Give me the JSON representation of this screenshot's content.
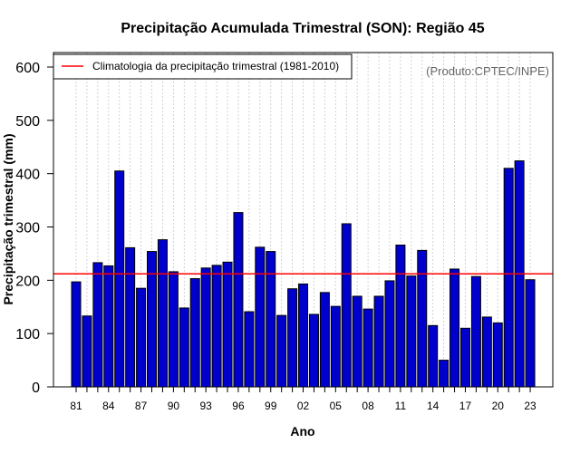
{
  "chart_data": {
    "type": "bar",
    "title": "Precipitação Acumulada Trimestral (SON): Região 45",
    "xlabel": "Ano",
    "ylabel": "Precipitação trimestral (mm)",
    "ylim": [
      0,
      600
    ],
    "yticks": [
      0,
      100,
      200,
      300,
      400,
      500,
      600
    ],
    "grid": true,
    "categories": [
      "1981",
      "1982",
      "1983",
      "1984",
      "1985",
      "1986",
      "1987",
      "1988",
      "1989",
      "1990",
      "1991",
      "1992",
      "1993",
      "1994",
      "1995",
      "1996",
      "1997",
      "1998",
      "1999",
      "2000",
      "2001",
      "2002",
      "2003",
      "2004",
      "2005",
      "2006",
      "2007",
      "2008",
      "2009",
      "2010",
      "2011",
      "2012",
      "2013",
      "2014",
      "2015",
      "2016",
      "2017",
      "2018",
      "2019",
      "2020",
      "2021",
      "2022",
      "2023"
    ],
    "xtick_labels": [
      "81",
      "84",
      "87",
      "90",
      "93",
      "96",
      "99",
      "02",
      "05",
      "08",
      "11",
      "14",
      "17",
      "20",
      "23"
    ],
    "values": [
      197,
      133,
      233,
      227,
      405,
      261,
      185,
      254,
      276,
      216,
      148,
      203,
      223,
      228,
      234,
      327,
      141,
      262,
      254,
      134,
      184,
      193,
      136,
      177,
      151,
      306,
      170,
      146,
      170,
      199,
      266,
      208,
      256,
      115,
      50,
      221,
      110,
      207,
      131,
      120,
      410,
      424,
      201
    ],
    "reference_line": {
      "label": "Climatologia da precipitação trimestral (1981-2010)",
      "value": 212,
      "color": "#ff0000"
    },
    "legend_position": "top-left",
    "bar_color": "#0000cd",
    "credit": "(Produto:CPTEC/INPE)"
  }
}
